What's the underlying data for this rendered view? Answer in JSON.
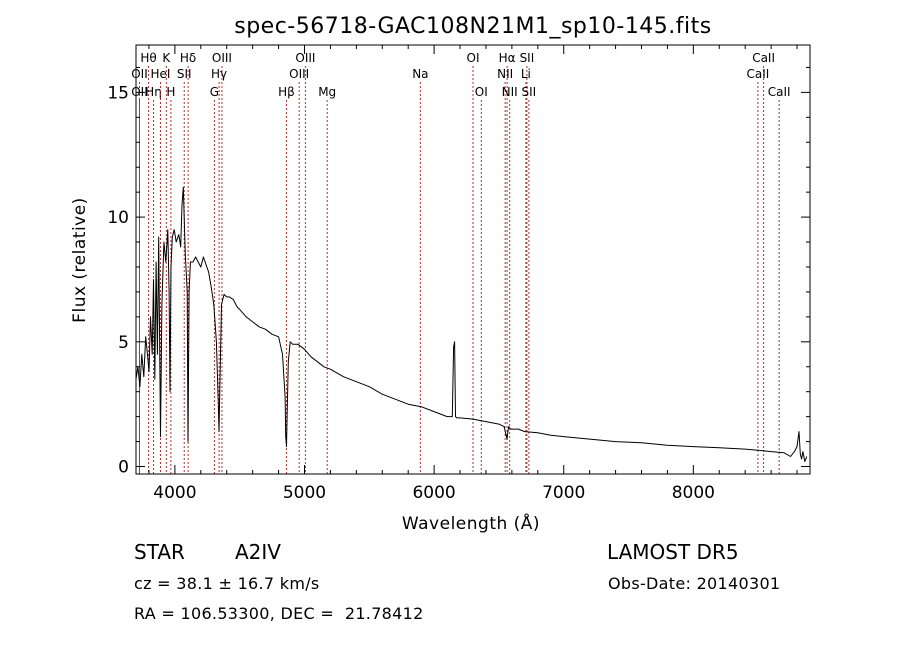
{
  "chart_data": {
    "type": "line",
    "title": "spec-56718-GAC108N21M1_sp10-145.fits",
    "xlabel": "Wavelength (Å)",
    "ylabel": "Flux (relative)",
    "xlim": [
      3700,
      8900
    ],
    "ylim": [
      -0.3,
      16.9
    ],
    "xticks": [
      4000,
      5000,
      6000,
      7000,
      8000
    ],
    "yticks": [
      0,
      5,
      10,
      15
    ],
    "grid": false,
    "spectrum": {
      "x": [
        3700,
        3715,
        3730,
        3745,
        3760,
        3775,
        3790,
        3800,
        3812,
        3825,
        3835,
        3845,
        3855,
        3865,
        3875,
        3889,
        3900,
        3915,
        3930,
        3945,
        3955,
        3962,
        3970,
        3980,
        3995,
        4010,
        4030,
        4045,
        4055,
        4065,
        4080,
        4095,
        4101,
        4110,
        4120,
        4140,
        4160,
        4180,
        4200,
        4220,
        4240,
        4260,
        4280,
        4300,
        4320,
        4335,
        4340,
        4348,
        4360,
        4380,
        4400,
        4420,
        4450,
        4480,
        4500,
        4550,
        4600,
        4650,
        4700,
        4750,
        4800,
        4830,
        4850,
        4855,
        4861,
        4866,
        4875,
        4890,
        4910,
        4950,
        5000,
        5050,
        5100,
        5150,
        5200,
        5300,
        5400,
        5500,
        5600,
        5700,
        5800,
        5900,
        6000,
        6050,
        6100,
        6140,
        6150,
        6158,
        6165,
        6175,
        6200,
        6300,
        6400,
        6500,
        6540,
        6562,
        6575,
        6590,
        6650,
        6700,
        6800,
        6900,
        7000,
        7200,
        7400,
        7600,
        7800,
        8000,
        8200,
        8400,
        8500,
        8600,
        8700,
        8750,
        8780,
        8800,
        8815,
        8825,
        8835,
        8845,
        8860,
        8875
      ],
      "y": [
        3.5,
        4.0,
        3.2,
        4.5,
        3.6,
        5.2,
        4.4,
        3.8,
        6.0,
        4.5,
        7.5,
        3.5,
        8.2,
        4.5,
        9.2,
        1.2,
        6.5,
        9.0,
        8.2,
        9.5,
        7.0,
        3.0,
        8.0,
        9.2,
        9.5,
        9.0,
        9.3,
        8.8,
        10.5,
        11.2,
        8.5,
        7.0,
        1.0,
        7.0,
        8.2,
        8.2,
        8.4,
        8.2,
        8.0,
        8.4,
        8.1,
        7.8,
        7.2,
        6.5,
        5.0,
        2.5,
        1.4,
        3.5,
        6.5,
        6.9,
        6.8,
        6.8,
        6.7,
        6.4,
        6.3,
        6.0,
        5.8,
        5.6,
        5.5,
        5.3,
        5.2,
        4.5,
        2.8,
        1.2,
        0.8,
        2.0,
        4.2,
        5.0,
        4.9,
        4.9,
        4.7,
        4.4,
        4.2,
        4.0,
        3.9,
        3.6,
        3.4,
        3.2,
        2.9,
        2.7,
        2.5,
        2.4,
        2.2,
        2.1,
        2.0,
        2.0,
        4.8,
        5.0,
        2.0,
        1.95,
        1.95,
        1.9,
        1.8,
        1.7,
        1.6,
        1.1,
        1.6,
        1.5,
        1.5,
        1.4,
        1.35,
        1.25,
        1.2,
        1.1,
        1.0,
        0.95,
        0.85,
        0.8,
        0.75,
        0.7,
        0.65,
        0.6,
        0.55,
        0.4,
        0.6,
        0.8,
        1.4,
        0.5,
        0.3,
        0.6,
        0.2,
        0.4
      ]
    },
    "line_markers": [
      {
        "label": "Hθ",
        "x": 3797,
        "row": 1
      },
      {
        "label": "OII",
        "x": 3727,
        "row": 2
      },
      {
        "label": "OII",
        "x": 3727,
        "row": 3
      },
      {
        "label": "Hη",
        "x": 3835,
        "row": 3
      },
      {
        "label": "HeI",
        "x": 3889,
        "row": 2
      },
      {
        "label": "K",
        "x": 3934,
        "row": 1
      },
      {
        "label": "H",
        "x": 3969,
        "row": 3
      },
      {
        "label": "Hδ",
        "x": 4102,
        "row": 1
      },
      {
        "label": "SII",
        "x": 4072,
        "row": 2
      },
      {
        "label": "OIII",
        "x": 4363,
        "row": 1
      },
      {
        "label": "Hγ",
        "x": 4341,
        "row": 2
      },
      {
        "label": "G",
        "x": 4305,
        "row": 3
      },
      {
        "label": "OIII",
        "x": 5007,
        "row": 1
      },
      {
        "label": "OIII",
        "x": 4959,
        "row": 2
      },
      {
        "label": "Hβ",
        "x": 4861,
        "row": 3
      },
      {
        "label": "Mg",
        "x": 5175,
        "row": 3
      },
      {
        "label": "Na",
        "x": 5894,
        "row": 2
      },
      {
        "label": "OI",
        "x": 6300,
        "row": 1
      },
      {
        "label": "OI",
        "x": 6364,
        "row": 3
      },
      {
        "label": "Hα",
        "x": 6563,
        "row": 1
      },
      {
        "label": "NII",
        "x": 6548,
        "row": 2
      },
      {
        "label": "NII",
        "x": 6583,
        "row": 3
      },
      {
        "label": "SII",
        "x": 6716,
        "row": 1
      },
      {
        "label": "Li",
        "x": 6708,
        "row": 2
      },
      {
        "label": "SII",
        "x": 6731,
        "row": 3
      },
      {
        "label": "CaII",
        "x": 8542,
        "row": 1
      },
      {
        "label": "CaII",
        "x": 8498,
        "row": 2
      },
      {
        "label": "CaII",
        "x": 8662,
        "row": 3
      }
    ]
  },
  "info": {
    "object_class": "STAR",
    "subclass": "A2IV",
    "survey": "LAMOST DR5",
    "redshift": "cz = 38.1 ± 16.7 km/s",
    "obs_date": "Obs-Date: 20140301",
    "coords": "RA = 106.53300, DEC =  21.78412"
  },
  "colors": {
    "axes": "#000000",
    "spectrum": "#000000",
    "marker_lines": "#b03030"
  }
}
